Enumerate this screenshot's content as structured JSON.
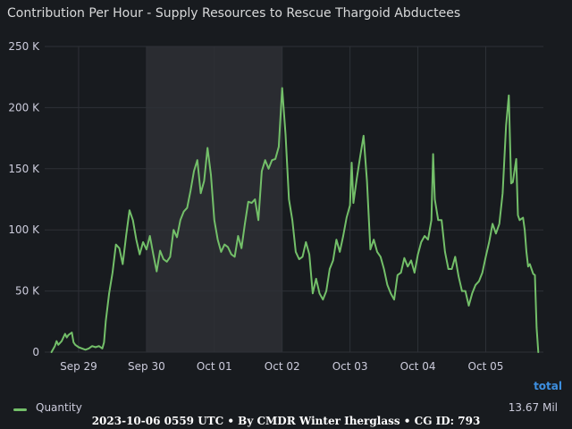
{
  "title": "Contribution Per Hour - Supply Resources to Rescue Thargoid Abductees",
  "legend": {
    "header": "total",
    "series_name": "Quantity",
    "series_total": "13.67 Mil"
  },
  "footer": "2023-10-06 0559 UTC • By CMDR Winter Iherglass • CG ID: 793",
  "colors": {
    "background": "#181b1f",
    "line": "#73bf69",
    "shaded_region": "#2a2c31",
    "grid": "#2e3137",
    "axis_text": "#ccccdc",
    "legend_header": "#3d8fe0"
  },
  "chart_data": {
    "type": "line",
    "title": "Contribution Per Hour - Supply Resources to Rescue Thargoid Abductees",
    "x_axis": {
      "unit": "hours since start",
      "range": [
        0,
        135
      ],
      "ticks": [
        {
          "x": 8,
          "label": "Sep 29"
        },
        {
          "x": 28,
          "label": "Sep 30"
        },
        {
          "x": 48,
          "label": "Oct 01"
        },
        {
          "x": 68,
          "label": "Oct 02"
        },
        {
          "x": 88,
          "label": "Oct 03"
        },
        {
          "x": 108,
          "label": "Oct 04"
        },
        {
          "x": 128,
          "label": "Oct 05"
        }
      ]
    },
    "y_axis": {
      "range": [
        0,
        250000
      ],
      "ticks": [
        {
          "v": 0,
          "label": "0"
        },
        {
          "v": 50000,
          "label": "50 K"
        },
        {
          "v": 100000,
          "label": "100 K"
        },
        {
          "v": 150000,
          "label": "150 K"
        },
        {
          "v": 200000,
          "label": "200 K"
        },
        {
          "v": 250000,
          "label": "250 K"
        }
      ]
    },
    "shaded_range": [
      28,
      68
    ],
    "grid": true,
    "legend_position": "bottom",
    "series": [
      {
        "name": "Quantity",
        "color": "#73bf69",
        "values": [
          [
            0,
            0
          ],
          [
            1,
            5000
          ],
          [
            1.5,
            9000
          ],
          [
            2,
            6000
          ],
          [
            3,
            9000
          ],
          [
            4,
            15000
          ],
          [
            4.5,
            12000
          ],
          [
            5,
            14000
          ],
          [
            6,
            16000
          ],
          [
            6.5,
            8000
          ],
          [
            7,
            6000
          ],
          [
            8,
            4000
          ],
          [
            9,
            3000
          ],
          [
            10,
            2000
          ],
          [
            11,
            3000
          ],
          [
            12,
            5000
          ],
          [
            13,
            4000
          ],
          [
            14,
            5000
          ],
          [
            15,
            3000
          ],
          [
            15.5,
            8000
          ],
          [
            16,
            25000
          ],
          [
            17,
            48000
          ],
          [
            18,
            65000
          ],
          [
            19,
            88000
          ],
          [
            20,
            85000
          ],
          [
            21,
            72000
          ],
          [
            22,
            95000
          ],
          [
            23,
            116000
          ],
          [
            24,
            108000
          ],
          [
            25,
            92000
          ],
          [
            26,
            80000
          ],
          [
            27,
            90000
          ],
          [
            28,
            84000
          ],
          [
            29,
            95000
          ],
          [
            30,
            80000
          ],
          [
            31,
            66000
          ],
          [
            32,
            83000
          ],
          [
            33,
            76000
          ],
          [
            34,
            74000
          ],
          [
            35,
            78000
          ],
          [
            36,
            100000
          ],
          [
            37,
            94000
          ],
          [
            38,
            108000
          ],
          [
            39,
            115000
          ],
          [
            40,
            118000
          ],
          [
            41,
            132000
          ],
          [
            42,
            148000
          ],
          [
            43,
            157000
          ],
          [
            44,
            130000
          ],
          [
            45,
            140000
          ],
          [
            46,
            167000
          ],
          [
            47,
            145000
          ],
          [
            48,
            108000
          ],
          [
            49,
            92000
          ],
          [
            50,
            82000
          ],
          [
            51,
            88000
          ],
          [
            52,
            86000
          ],
          [
            53,
            80000
          ],
          [
            54,
            78000
          ],
          [
            55,
            95000
          ],
          [
            56,
            85000
          ],
          [
            57,
            105000
          ],
          [
            58,
            123000
          ],
          [
            59,
            122000
          ],
          [
            60,
            125000
          ],
          [
            61,
            108000
          ],
          [
            62,
            148000
          ],
          [
            63,
            157000
          ],
          [
            64,
            150000
          ],
          [
            65,
            157000
          ],
          [
            66,
            158000
          ],
          [
            67,
            168000
          ],
          [
            68,
            216000
          ],
          [
            69,
            178000
          ],
          [
            70,
            125000
          ],
          [
            71,
            108000
          ],
          [
            72,
            82000
          ],
          [
            73,
            76000
          ],
          [
            74,
            78000
          ],
          [
            75,
            90000
          ],
          [
            76,
            80000
          ],
          [
            77,
            48000
          ],
          [
            78,
            60000
          ],
          [
            79,
            48000
          ],
          [
            80,
            43000
          ],
          [
            81,
            50000
          ],
          [
            82,
            68000
          ],
          [
            83,
            75000
          ],
          [
            84,
            92000
          ],
          [
            85,
            82000
          ],
          [
            86,
            95000
          ],
          [
            87,
            110000
          ],
          [
            88,
            120000
          ],
          [
            88.5,
            155000
          ],
          [
            89,
            122000
          ],
          [
            90,
            142000
          ],
          [
            91,
            160000
          ],
          [
            92,
            177000
          ],
          [
            93,
            140000
          ],
          [
            94,
            84000
          ],
          [
            95,
            92000
          ],
          [
            96,
            82000
          ],
          [
            97,
            78000
          ],
          [
            98,
            68000
          ],
          [
            99,
            55000
          ],
          [
            100,
            48000
          ],
          [
            101,
            43000
          ],
          [
            102,
            63000
          ],
          [
            103,
            65000
          ],
          [
            104,
            77000
          ],
          [
            105,
            70000
          ],
          [
            106,
            75000
          ],
          [
            107,
            65000
          ],
          [
            108,
            80000
          ],
          [
            109,
            90000
          ],
          [
            110,
            95000
          ],
          [
            111,
            92000
          ],
          [
            112,
            108000
          ],
          [
            112.5,
            162000
          ],
          [
            113,
            125000
          ],
          [
            114,
            108000
          ],
          [
            115,
            108000
          ],
          [
            116,
            82000
          ],
          [
            117,
            68000
          ],
          [
            118,
            68000
          ],
          [
            119,
            78000
          ],
          [
            120,
            62000
          ],
          [
            121,
            50000
          ],
          [
            122,
            50000
          ],
          [
            123,
            38000
          ],
          [
            124,
            48000
          ],
          [
            125,
            55000
          ],
          [
            126,
            58000
          ],
          [
            127,
            65000
          ],
          [
            128,
            78000
          ],
          [
            129,
            90000
          ],
          [
            130,
            105000
          ],
          [
            131,
            97000
          ],
          [
            132,
            105000
          ],
          [
            133,
            130000
          ],
          [
            134,
            185000
          ],
          [
            134.8,
            210000
          ],
          [
            135.5,
            138000
          ],
          [
            136,
            139000
          ],
          [
            137,
            158000
          ],
          [
            137.5,
            112000
          ],
          [
            138,
            108000
          ],
          [
            139,
            110000
          ],
          [
            139.5,
            100000
          ],
          [
            140,
            82000
          ],
          [
            140.5,
            70000
          ],
          [
            141,
            72000
          ],
          [
            142,
            64000
          ],
          [
            142.5,
            63000
          ],
          [
            143,
            20000
          ],
          [
            143.5,
            0
          ]
        ]
      }
    ]
  }
}
